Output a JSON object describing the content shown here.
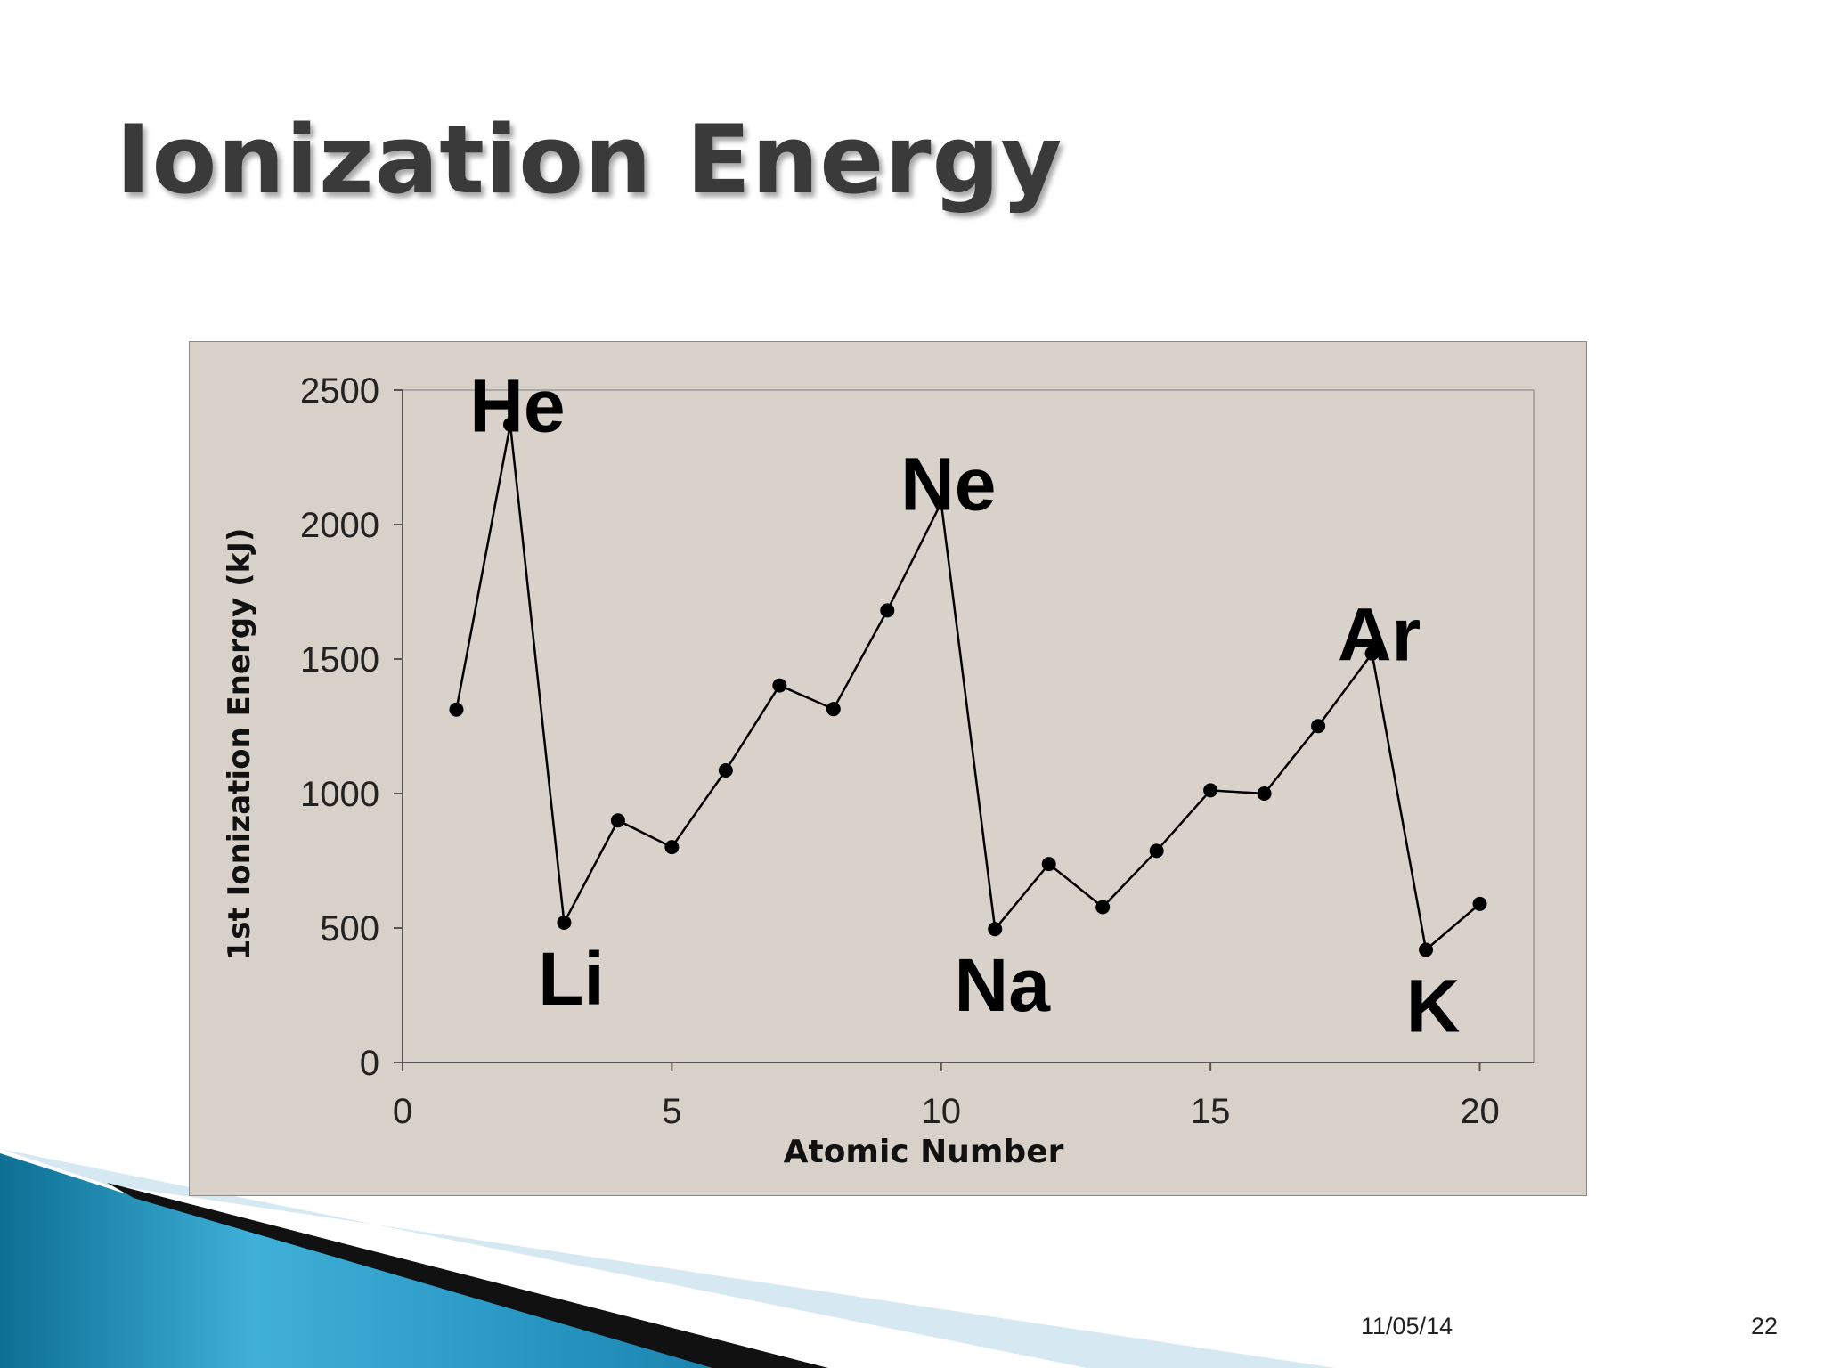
{
  "slide": {
    "title": "Ionization Energy",
    "date": "11/05/14",
    "page_number": "22"
  },
  "colors": {
    "chart_background": "#d8d1c9",
    "plot_background": "#d9d2cb",
    "line": "#000000",
    "title_text": "#3a3a3a",
    "accent_blue": "#1f8ab3",
    "accent_light": "#cfe3ef"
  },
  "chart_data": {
    "type": "line",
    "title": "",
    "xlabel": "Atomic Number",
    "ylabel": "1st Ionization Energy (kJ)",
    "xlim": [
      0,
      21
    ],
    "ylim": [
      0,
      2500
    ],
    "xticks": [
      0,
      5,
      10,
      15,
      20
    ],
    "yticks": [
      0,
      500,
      1000,
      1500,
      2000,
      2500
    ],
    "grid": false,
    "legend": "none",
    "series": [
      {
        "x": [
          1,
          2,
          3,
          4,
          5,
          6,
          7,
          8,
          9,
          10,
          11,
          12,
          13,
          14,
          15,
          16,
          17,
          18,
          19,
          20
        ],
        "y": [
          1312,
          2372,
          520,
          900,
          801,
          1086,
          1402,
          1314,
          1681,
          2081,
          496,
          738,
          578,
          787,
          1012,
          1000,
          1251,
          1521,
          419,
          590
        ]
      }
    ],
    "annotations": [
      {
        "text": "He",
        "x": 2,
        "y": 2372,
        "anchor": "above"
      },
      {
        "text": "Li",
        "x": 3,
        "y": 520,
        "anchor": "below"
      },
      {
        "text": "Ne",
        "x": 10,
        "y": 2081,
        "anchor": "above"
      },
      {
        "text": "Na",
        "x": 11,
        "y": 496,
        "anchor": "below"
      },
      {
        "text": "Ar",
        "x": 18,
        "y": 1521,
        "anchor": "above"
      },
      {
        "text": "K",
        "x": 19,
        "y": 419,
        "anchor": "below"
      }
    ]
  }
}
